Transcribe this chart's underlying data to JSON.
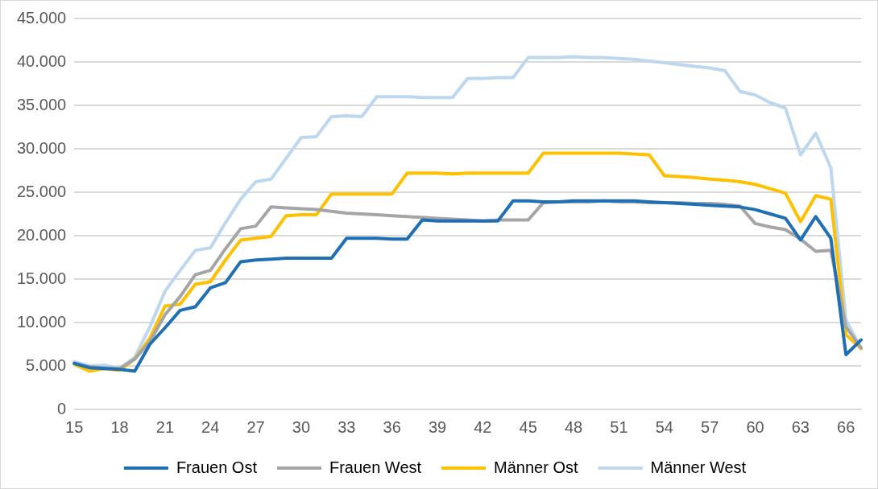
{
  "chart_data": {
    "type": "line",
    "categories": [
      "15",
      null,
      null,
      "18",
      null,
      null,
      "21",
      null,
      null,
      "24",
      null,
      null,
      "27",
      null,
      null,
      "30",
      null,
      null,
      "33",
      null,
      null,
      "36",
      null,
      null,
      "39",
      null,
      null,
      "42",
      null,
      null,
      "45",
      null,
      null,
      "48",
      null,
      null,
      "51",
      null,
      null,
      "54",
      null,
      null,
      "57",
      null,
      null,
      "60",
      null,
      null,
      "63",
      null,
      null,
      "66",
      null
    ],
    "series": [
      {
        "name": "Frauen Ost",
        "color": "#1f6fb5",
        "values": [
          5300,
          4800,
          4700,
          4600,
          4400,
          7500,
          9400,
          11400,
          11800,
          14000,
          14600,
          17000,
          17200,
          17300,
          17400,
          17400,
          17400,
          17400,
          19700,
          19700,
          19700,
          19600,
          19600,
          21800,
          21700,
          21700,
          21700,
          21700,
          21700,
          24000,
          24000,
          23900,
          23900,
          24000,
          24000,
          24000,
          24000,
          24000,
          23900,
          23800,
          23700,
          23600,
          23500,
          23400,
          23300,
          23000,
          22500,
          22000,
          19500,
          22200,
          19700,
          6300,
          8000
        ]
      },
      {
        "name": "Frauen West",
        "color": "#a5a5a5",
        "values": [
          5300,
          4900,
          4800,
          4700,
          5800,
          7800,
          10900,
          13000,
          15500,
          16000,
          18500,
          20800,
          21100,
          23300,
          23200,
          23100,
          23000,
          22800,
          22600,
          22500,
          22400,
          22300,
          22200,
          22100,
          22000,
          21900,
          21800,
          21700,
          21800,
          21800,
          21800,
          23800,
          23900,
          23900,
          23900,
          24000,
          23900,
          23900,
          23800,
          23800,
          23800,
          23700,
          23700,
          23600,
          23400,
          21400,
          21000,
          20700,
          19600,
          18200,
          18300,
          9500,
          7100
        ]
      },
      {
        "name": "Männer Ost",
        "color": "#ffc000",
        "values": [
          5200,
          4400,
          4700,
          4500,
          5800,
          8200,
          11900,
          12100,
          14400,
          14700,
          17200,
          19500,
          19700,
          19900,
          22300,
          22400,
          22400,
          24800,
          24800,
          24800,
          24800,
          24800,
          27200,
          27200,
          27200,
          27100,
          27200,
          27200,
          27200,
          27200,
          27200,
          29500,
          29500,
          29500,
          29500,
          29500,
          29500,
          29400,
          29300,
          26900,
          26800,
          26700,
          26500,
          26400,
          26200,
          25900,
          25400,
          24900,
          21600,
          24600,
          24200,
          8600,
          7000
        ]
      },
      {
        "name": "Männer West",
        "color": "#bdd7ee",
        "values": [
          5500,
          5000,
          5100,
          4700,
          6000,
          9500,
          13600,
          16000,
          18300,
          18600,
          21500,
          24200,
          26200,
          26500,
          28900,
          31300,
          31400,
          33700,
          33800,
          33700,
          36000,
          36000,
          36000,
          35900,
          35900,
          35900,
          38100,
          38100,
          38200,
          38200,
          40500,
          40500,
          40500,
          40600,
          40500,
          40500,
          40400,
          40300,
          40100,
          39900,
          39700,
          39500,
          39300,
          39000,
          36600,
          36200,
          35300,
          34700,
          29300,
          31800,
          27800,
          10300,
          7000
        ]
      }
    ],
    "ylim": [
      0,
      45000
    ],
    "yticks": [
      {
        "value": 0,
        "label": "0"
      },
      {
        "value": 5000,
        "label": "5.000"
      },
      {
        "value": 10000,
        "label": "10.000"
      },
      {
        "value": 15000,
        "label": "15.000"
      },
      {
        "value": 20000,
        "label": "20.000"
      },
      {
        "value": 25000,
        "label": "25.000"
      },
      {
        "value": 30000,
        "label": "30.000"
      },
      {
        "value": 35000,
        "label": "35.000"
      },
      {
        "value": 40000,
        "label": "40.000"
      },
      {
        "value": 45000,
        "label": "45.000"
      }
    ],
    "grid": "y",
    "legend": "bottom",
    "marker": "none",
    "line_style": "solid"
  }
}
